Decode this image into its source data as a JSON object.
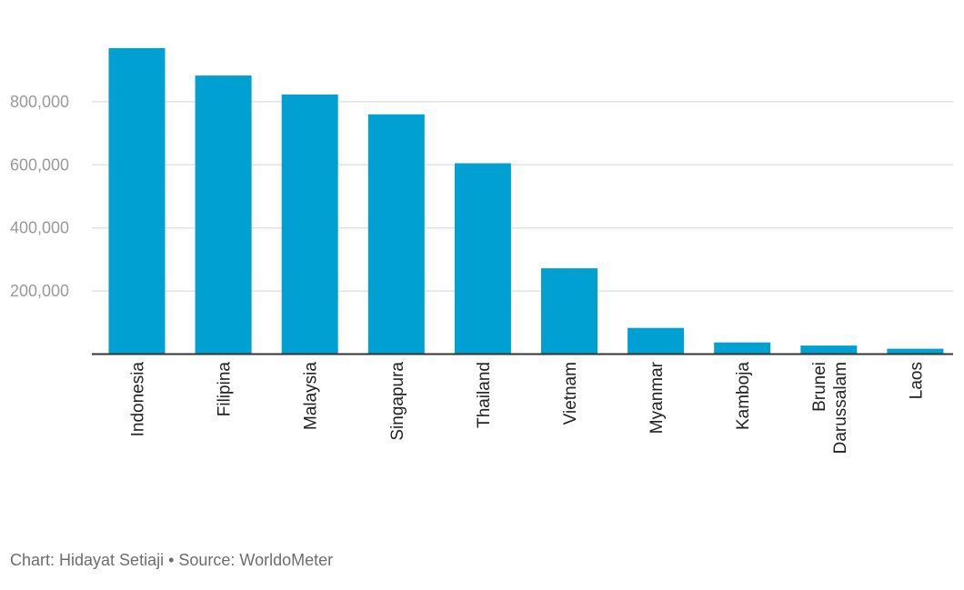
{
  "chart_data": {
    "type": "bar",
    "categories": [
      "Indonesia",
      "Filipina",
      "Malaysia",
      "Singapura",
      "Thailand",
      "Vietnam",
      "Myanmar",
      "Kamboja",
      "Brunei Darussalam",
      "Laos"
    ],
    "category_lines": [
      [
        "Indonesia"
      ],
      [
        "Filipina"
      ],
      [
        "Malaysia"
      ],
      [
        "Singapura"
      ],
      [
        "Thailand"
      ],
      [
        "Vietnam"
      ],
      [
        "Myanmar"
      ],
      [
        "Kamboja"
      ],
      [
        "Brunei",
        "Darussalam"
      ],
      [
        "Laos"
      ]
    ],
    "values": [
      970000,
      883000,
      823000,
      760000,
      605000,
      272000,
      83000,
      37000,
      27000,
      17000
    ],
    "yticks": [
      200000,
      400000,
      600000,
      800000
    ],
    "ytick_labels": [
      "200,000",
      "400,000",
      "600,000",
      "800,000"
    ],
    "ylim": [
      0,
      1000000
    ],
    "grid": true,
    "bar_color": "#00a0d2",
    "title": "",
    "xlabel": "",
    "ylabel": ""
  },
  "footer": {
    "credit": "Chart: Hidayat Setiaji • Source: WorldoMeter"
  }
}
